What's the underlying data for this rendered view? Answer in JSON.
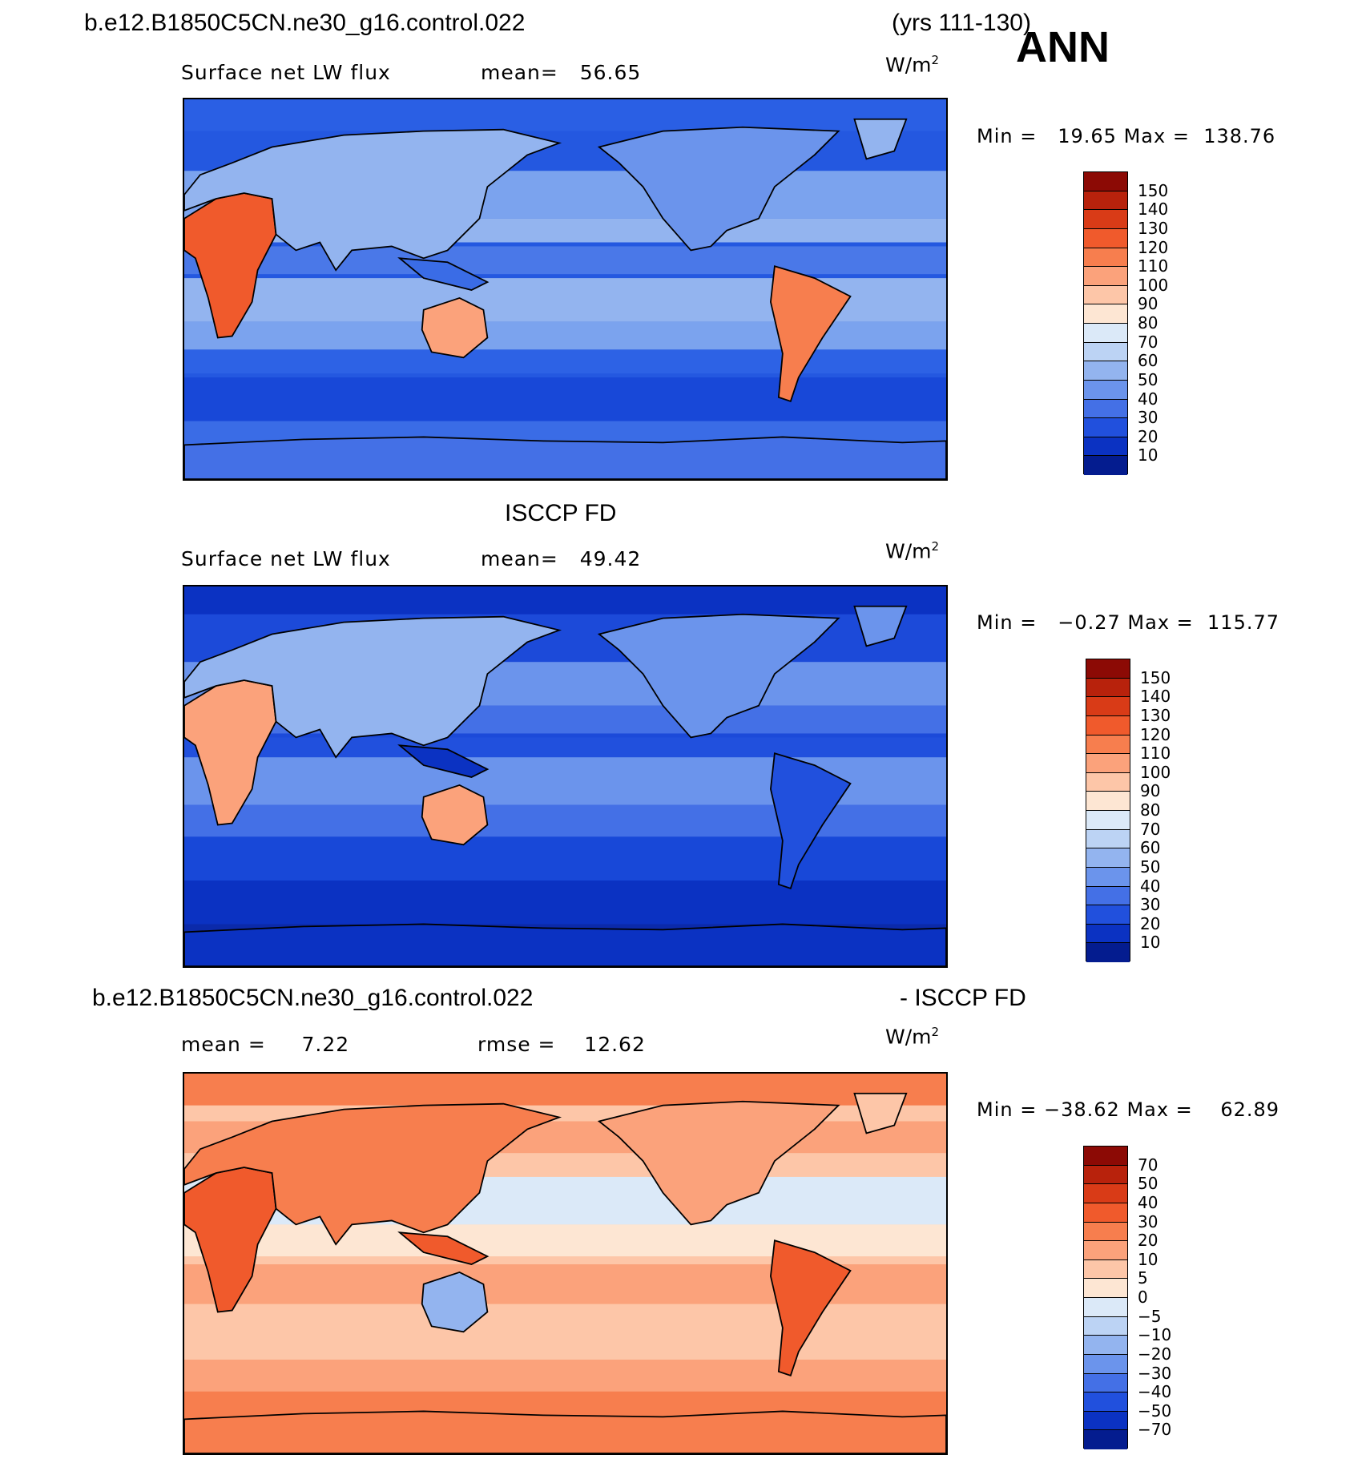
{
  "header": {
    "case_name": "b.e12.B1850C5CN.ne30_g16.control.022",
    "years": "(yrs 111-130)",
    "season": "ANN"
  },
  "panels": [
    {
      "id": "model",
      "title": "",
      "left_label": "Surface net LW flux",
      "right_label_name": "mean=",
      "right_label_value": "56.65",
      "units_base": "W/m",
      "units_sup": "2",
      "min_label": "Min =",
      "min_value": "19.65",
      "max_label": "Max =",
      "max_value": "138.76",
      "colorbar_labels": [
        "150",
        "140",
        "130",
        "120",
        "110",
        "100",
        "90",
        "80",
        "70",
        "60",
        "50",
        "40",
        "30",
        "20",
        "10"
      ],
      "colorbar_colors": [
        "#8c0a05",
        "#b8220c",
        "#d93b17",
        "#f05a2c",
        "#f77e4e",
        "#fba27b",
        "#fdc6a8",
        "#fde6d3",
        "#dbe9f8",
        "#bcd3f4",
        "#93b4ef",
        "#6b94ec",
        "#4470e6",
        "#2150dd",
        "#0b32c2",
        "#041c8f"
      ],
      "map_style": "model"
    },
    {
      "id": "obs",
      "title": "ISCCP FD",
      "left_label": "Surface net LW flux",
      "right_label_name": "mean=",
      "right_label_value": "49.42",
      "units_base": "W/m",
      "units_sup": "2",
      "min_label": "Min =",
      "min_value": "−0.27",
      "max_label": "Max =",
      "max_value": "115.77",
      "colorbar_labels": [
        "150",
        "140",
        "130",
        "120",
        "110",
        "100",
        "90",
        "80",
        "70",
        "60",
        "50",
        "40",
        "30",
        "20",
        "10"
      ],
      "colorbar_colors": [
        "#8c0a05",
        "#b8220c",
        "#d93b17",
        "#f05a2c",
        "#f77e4e",
        "#fba27b",
        "#fdc6a8",
        "#fde6d3",
        "#dbe9f8",
        "#bcd3f4",
        "#93b4ef",
        "#6b94ec",
        "#4470e6",
        "#2150dd",
        "#0b32c2",
        "#041c8f"
      ],
      "map_style": "obs"
    },
    {
      "id": "diff",
      "title_left": "b.e12.B1850C5CN.ne30_g16.control.022",
      "title_right": "- ISCCP FD",
      "left_label_name": "mean =",
      "left_label_value": "7.22",
      "right_label_name": "rmse =",
      "right_label_value": "12.62",
      "units_base": "W/m",
      "units_sup": "2",
      "min_label": "Min =",
      "min_value": "−38.62",
      "max_label": "Max =",
      "max_value": "62.89",
      "colorbar_labels": [
        "70",
        "50",
        "40",
        "30",
        "20",
        "10",
        "5",
        "0",
        "−5",
        "−10",
        "−20",
        "−30",
        "−40",
        "−50",
        "−70"
      ],
      "colorbar_colors": [
        "#8c0a05",
        "#b8220c",
        "#d93b17",
        "#f05a2c",
        "#f77e4e",
        "#fba27b",
        "#fdc6a8",
        "#fde6d3",
        "#dbe9f8",
        "#bcd3f4",
        "#93b4ef",
        "#6b94ec",
        "#4470e6",
        "#2150dd",
        "#0b32c2",
        "#041c8f"
      ],
      "map_style": "diff"
    }
  ]
}
